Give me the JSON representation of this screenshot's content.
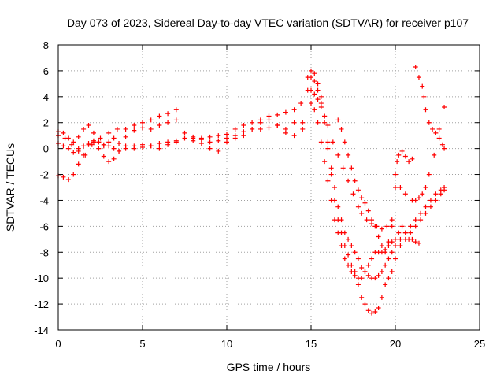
{
  "chart_data": {
    "type": "scatter",
    "title": "Day 073 of 2023, Sidereal Day-to-day VTEC variation (SDTVAR) for receiver p107",
    "xlabel": "GPS time / hours",
    "ylabel": "SDTVAR / TECUs",
    "xlim": [
      0,
      25
    ],
    "ylim": [
      -14,
      8
    ],
    "xticks": [
      0,
      5,
      10,
      15,
      20,
      25
    ],
    "yticks": [
      -14,
      -12,
      -10,
      -8,
      -6,
      -4,
      -2,
      0,
      2,
      4,
      6,
      8
    ],
    "grid": true,
    "legend": "none",
    "marker": "plus",
    "color": "#ff0000",
    "series": [
      {
        "x": [
          0.0,
          0.3,
          0.6,
          0.9,
          1.2,
          1.5,
          1.8,
          2.1,
          2.4,
          2.7,
          3.0,
          3.3,
          3.6,
          4.0,
          4.5,
          5.0,
          5.5,
          6.0,
          6.5,
          7.0,
          7.5,
          8.0,
          8.5,
          9.0,
          9.5,
          10.0,
          10.5,
          11.0,
          11.5,
          12.0,
          12.5,
          13.0,
          13.5,
          14.0,
          14.4,
          14.8,
          15.0,
          15.2,
          15.4,
          15.6,
          15.8,
          16.0,
          16.2,
          16.4,
          16.6,
          16.8,
          17.0,
          17.2,
          17.4,
          17.6,
          17.8,
          18.0,
          18.2,
          18.4,
          18.6,
          18.8,
          19.0,
          19.2,
          19.4,
          19.6,
          19.8,
          20.0,
          20.3,
          20.6,
          20.9,
          21.2,
          21.5,
          21.8,
          22.1,
          22.4,
          22.7,
          22.9
        ],
        "y": [
          1.3,
          1.2,
          0.8,
          0.5,
          0.9,
          1.5,
          1.8,
          1.2,
          0.5,
          0.2,
          0.5,
          0.8,
          0.4,
          0.9,
          1.4,
          1.6,
          1.5,
          1.8,
          2.0,
          2.2,
          1.2,
          0.8,
          0.8,
          0.9,
          1.0,
          1.1,
          1.5,
          1.8,
          2.0,
          2.2,
          2.5,
          2.6,
          2.8,
          3.0,
          3.5,
          5.5,
          6.0,
          5.8,
          5.0,
          4.0,
          2.5,
          0.5,
          -1.5,
          -3.0,
          -4.5,
          -5.5,
          -6.5,
          -7.0,
          -7.5,
          -8.0,
          -8.5,
          -9.2,
          -9.5,
          -9.8,
          -10.0,
          -10.0,
          -9.8,
          -9.5,
          -9.0,
          -8.5,
          -8.0,
          -7.5,
          -7.0,
          -6.5,
          -6.0,
          -5.5,
          -5.0,
          -4.5,
          -4.0,
          -3.5,
          -3.2,
          -3.0
        ]
      },
      {
        "x": [
          0.0,
          0.3,
          0.6,
          0.9,
          1.2,
          1.5,
          1.8,
          2.1,
          2.4,
          2.7,
          3.0,
          3.3,
          3.6,
          4.0,
          4.5,
          5.0,
          5.5,
          6.0,
          6.5,
          7.0,
          7.5,
          8.0,
          8.5,
          9.0,
          9.5,
          10.0,
          10.5,
          11.0,
          11.5,
          12.0,
          12.5,
          13.0,
          13.5,
          14.0,
          14.5,
          14.8,
          15.0,
          15.2,
          15.4,
          15.6,
          15.8,
          16.0,
          16.2,
          16.4,
          16.6,
          16.8,
          17.0,
          17.2,
          17.4,
          17.6,
          17.8,
          18.0,
          18.2,
          18.4,
          18.6,
          18.8,
          19.0,
          19.2,
          19.4,
          19.6,
          19.8,
          20.0,
          20.3,
          20.6,
          20.9,
          21.2,
          21.5,
          21.8,
          22.1,
          22.4,
          22.7,
          22.9
        ],
        "y": [
          0.4,
          0.2,
          0.0,
          -0.3,
          0.0,
          0.2,
          0.4,
          0.6,
          0.5,
          0.3,
          0.2,
          0.0,
          -0.2,
          0.0,
          0.2,
          0.3,
          0.2,
          0.4,
          0.5,
          0.6,
          0.8,
          0.9,
          0.7,
          0.5,
          0.6,
          0.8,
          1.0,
          1.3,
          1.5,
          1.5,
          1.6,
          1.8,
          1.2,
          1.0,
          1.5,
          4.5,
          5.5,
          5.2,
          4.5,
          3.5,
          2.0,
          0.0,
          -2.0,
          -4.0,
          -5.5,
          -6.5,
          -7.5,
          -8.2,
          -9.0,
          -9.5,
          -10.5,
          -11.5,
          -12.0,
          -12.5,
          -12.7,
          -12.6,
          -12.3,
          -11.5,
          -10.5,
          -10.0,
          -9.5,
          -8.5,
          -7.5,
          -7.0,
          -6.5,
          -6.0,
          -5.5,
          -5.0,
          -4.5,
          -4.0,
          -3.5,
          -3.2
        ]
      },
      {
        "x": [
          0.0,
          0.3,
          0.6,
          0.9,
          1.2,
          1.5,
          1.8,
          2.1,
          2.4,
          2.7,
          3.0,
          3.3,
          3.6,
          4.0,
          4.5,
          5.0,
          5.5,
          6.0,
          6.5,
          7.0,
          8.0,
          8.5,
          9.0,
          9.5,
          10.0,
          10.5,
          11.0,
          11.5,
          12.0,
          12.5,
          13.0,
          13.5,
          14.0,
          15.0,
          15.2,
          15.4,
          15.6,
          15.8,
          16.0,
          16.2,
          16.4,
          16.6,
          16.8,
          17.0,
          17.2,
          17.4,
          17.6,
          17.8,
          18.0,
          18.2,
          18.4,
          18.6,
          18.8,
          19.0,
          19.2,
          19.4,
          19.6,
          19.8,
          20.0,
          20.2,
          20.4,
          20.6,
          20.8,
          21.0,
          21.2,
          21.4
        ],
        "y": [
          -2.1,
          -2.2,
          -2.4,
          -2.0,
          -1.2,
          -0.5,
          0.3,
          0.5,
          0.0,
          -0.6,
          -1.0,
          -0.8,
          -0.2,
          0.2,
          0.0,
          0.1,
          0.2,
          0.0,
          0.3,
          0.5,
          0.6,
          0.4,
          0.0,
          -0.2,
          0.5,
          0.8,
          1.0,
          1.5,
          2.0,
          2.2,
          1.8,
          1.5,
          2.0,
          3.5,
          3.0,
          2.0,
          0.5,
          -1.0,
          -2.5,
          -4.0,
          -5.5,
          -6.5,
          -7.5,
          -8.5,
          -9.0,
          -9.5,
          -9.8,
          -10.0,
          -10.0,
          -9.5,
          -9.0,
          -8.5,
          -8.0,
          -8.0,
          -8.0,
          -7.8,
          -7.5,
          -7.2,
          -7.0,
          -6.5,
          -6.0,
          -6.5,
          -7.0,
          -7.0,
          -7.2,
          -7.3
        ]
      },
      {
        "x": [
          0.0,
          0.4,
          0.8,
          1.2,
          1.6,
          2.0,
          2.5,
          3.0,
          3.5,
          4.0,
          4.5,
          5.0,
          5.5,
          6.0,
          6.5,
          7.0,
          14.5,
          15.0,
          15.2,
          15.4,
          15.6,
          15.8,
          16.0,
          16.3,
          16.6,
          16.9,
          17.2,
          17.5,
          17.8,
          18.0,
          18.3,
          18.6,
          18.9,
          19.2,
          19.5,
          19.8,
          20.0,
          20.3,
          20.6,
          21.0,
          21.2,
          21.4,
          21.6,
          21.8,
          22.0,
          22.3,
          22.6,
          22.9
        ],
        "y": [
          1.0,
          0.8,
          0.3,
          -0.2,
          -0.5,
          0.3,
          0.8,
          1.2,
          1.5,
          1.5,
          1.8,
          2.0,
          2.2,
          2.5,
          2.7,
          3.0,
          2.0,
          4.5,
          4.2,
          3.8,
          3.2,
          2.5,
          1.8,
          0.5,
          -0.5,
          -1.5,
          -2.5,
          -3.5,
          -4.5,
          -5.0,
          -5.5,
          -5.8,
          -6.0,
          -6.2,
          -6.0,
          -5.5,
          -2.0,
          -3.0,
          -3.5,
          -4.0,
          -4.0,
          -3.8,
          -3.5,
          -3.0,
          -2.0,
          -0.5,
          1.5,
          3.2
        ]
      },
      {
        "x": [
          16.6,
          16.8,
          17.0,
          17.2,
          17.4,
          17.6,
          17.8,
          18.0,
          18.2,
          18.4,
          18.6,
          18.8,
          19.0,
          19.2,
          19.4,
          19.6,
          19.8,
          20.0,
          20.1,
          20.2,
          20.4,
          20.6,
          20.8,
          21.0,
          21.2,
          21.4,
          21.6,
          21.7,
          21.8,
          22.0,
          22.2,
          22.4,
          22.6,
          22.8,
          22.9
        ],
        "y": [
          2.2,
          1.5,
          0.5,
          -0.5,
          -1.5,
          -2.5,
          -3.2,
          -3.8,
          -4.2,
          -4.8,
          -5.5,
          -6.0,
          -6.8,
          -7.5,
          -8.0,
          -7.2,
          -6.0,
          -3.0,
          -1.0,
          -0.5,
          -0.2,
          -0.6,
          -1.0,
          -0.8,
          6.3,
          5.5,
          4.8,
          4.0,
          3.0,
          2.0,
          1.5,
          1.2,
          0.8,
          0.3,
          0.0
        ]
      }
    ]
  }
}
